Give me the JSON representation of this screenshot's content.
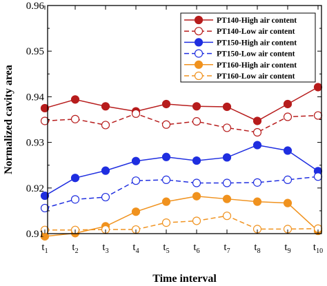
{
  "chart_data": {
    "type": "line",
    "xlabel": "Time interval",
    "ylabel": "Normalized cavity area",
    "ylim": [
      0.91,
      0.96
    ],
    "yticks": [
      "0.91",
      "0.92",
      "0.93",
      "0.94",
      "0.95",
      "0.96"
    ],
    "categories": [
      {
        "base": "t",
        "sub": "1"
      },
      {
        "base": "t",
        "sub": "2"
      },
      {
        "base": "t",
        "sub": "3"
      },
      {
        "base": "t",
        "sub": "4"
      },
      {
        "base": "t",
        "sub": "5"
      },
      {
        "base": "t",
        "sub": "6"
      },
      {
        "base": "t",
        "sub": "7"
      },
      {
        "base": "t",
        "sub": "8"
      },
      {
        "base": "t",
        "sub": "9"
      },
      {
        "base": "t",
        "sub": "10"
      }
    ],
    "legend_position": "top-right",
    "series": [
      {
        "name": "PT140-High air content",
        "color": "#b71c1c",
        "line": "solid",
        "marker": "filled-circle",
        "values": [
          0.9375,
          0.9394,
          0.9379,
          0.9368,
          0.9384,
          0.9379,
          0.9378,
          0.9347,
          0.9384,
          0.9421
        ]
      },
      {
        "name": "PT140-Low air content",
        "color": "#b71c1c",
        "line": "dashed",
        "marker": "open-circle",
        "values": [
          0.9347,
          0.9351,
          0.9338,
          0.9363,
          0.9339,
          0.9346,
          0.9332,
          0.9322,
          0.9356,
          0.9359
        ]
      },
      {
        "name": "PT150-High air content",
        "color": "#1f2ee0",
        "line": "solid",
        "marker": "filled-circle",
        "values": [
          0.9183,
          0.9222,
          0.9238,
          0.9259,
          0.9268,
          0.926,
          0.9267,
          0.9294,
          0.9282,
          0.9237
        ]
      },
      {
        "name": "PT150-Low air content",
        "color": "#1f2ee0",
        "line": "dashed",
        "marker": "open-circle",
        "values": [
          0.9156,
          0.9175,
          0.918,
          0.9216,
          0.9218,
          0.9211,
          0.9211,
          0.9212,
          0.9218,
          0.9225
        ]
      },
      {
        "name": "PT160-High air content",
        "color": "#f0921e",
        "line": "solid",
        "marker": "filled-circle",
        "values": [
          0.9094,
          0.9101,
          0.9116,
          0.9148,
          0.917,
          0.9182,
          0.9176,
          0.917,
          0.9167,
          0.9106
        ]
      },
      {
        "name": "PT160-Low air content",
        "color": "#f0921e",
        "line": "dashed",
        "marker": "open-circle",
        "values": [
          0.9108,
          0.9108,
          0.9109,
          0.9109,
          0.9124,
          0.9128,
          0.9139,
          0.911,
          0.911,
          0.9111
        ]
      }
    ]
  }
}
